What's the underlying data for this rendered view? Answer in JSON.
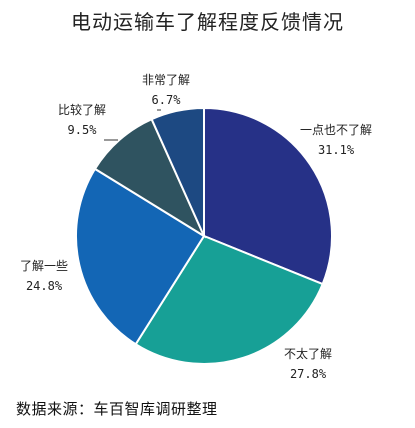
{
  "chart_data": {
    "type": "pie",
    "title": "电动运输车了解程度反馈情况",
    "slices": [
      {
        "label": "一点也不了解",
        "value": 31.1,
        "value_text": "31.1%",
        "color": "#263187"
      },
      {
        "label": "不太了解",
        "value": 27.8,
        "value_text": "27.8%",
        "color": "#17a096"
      },
      {
        "label": "了解一些",
        "value": 24.8,
        "value_text": "24.8%",
        "color": "#1366b5"
      },
      {
        "label": "比较了解",
        "value": 9.5,
        "value_text": "9.5%",
        "color": "#2f5360"
      },
      {
        "label": "非常了解",
        "value": 6.7,
        "value_text": "6.7%",
        "color": "#1d4982"
      }
    ],
    "start_angle_deg": 0,
    "direction": "clockwise"
  },
  "source_note": "数据来源：车百智库调研整理"
}
